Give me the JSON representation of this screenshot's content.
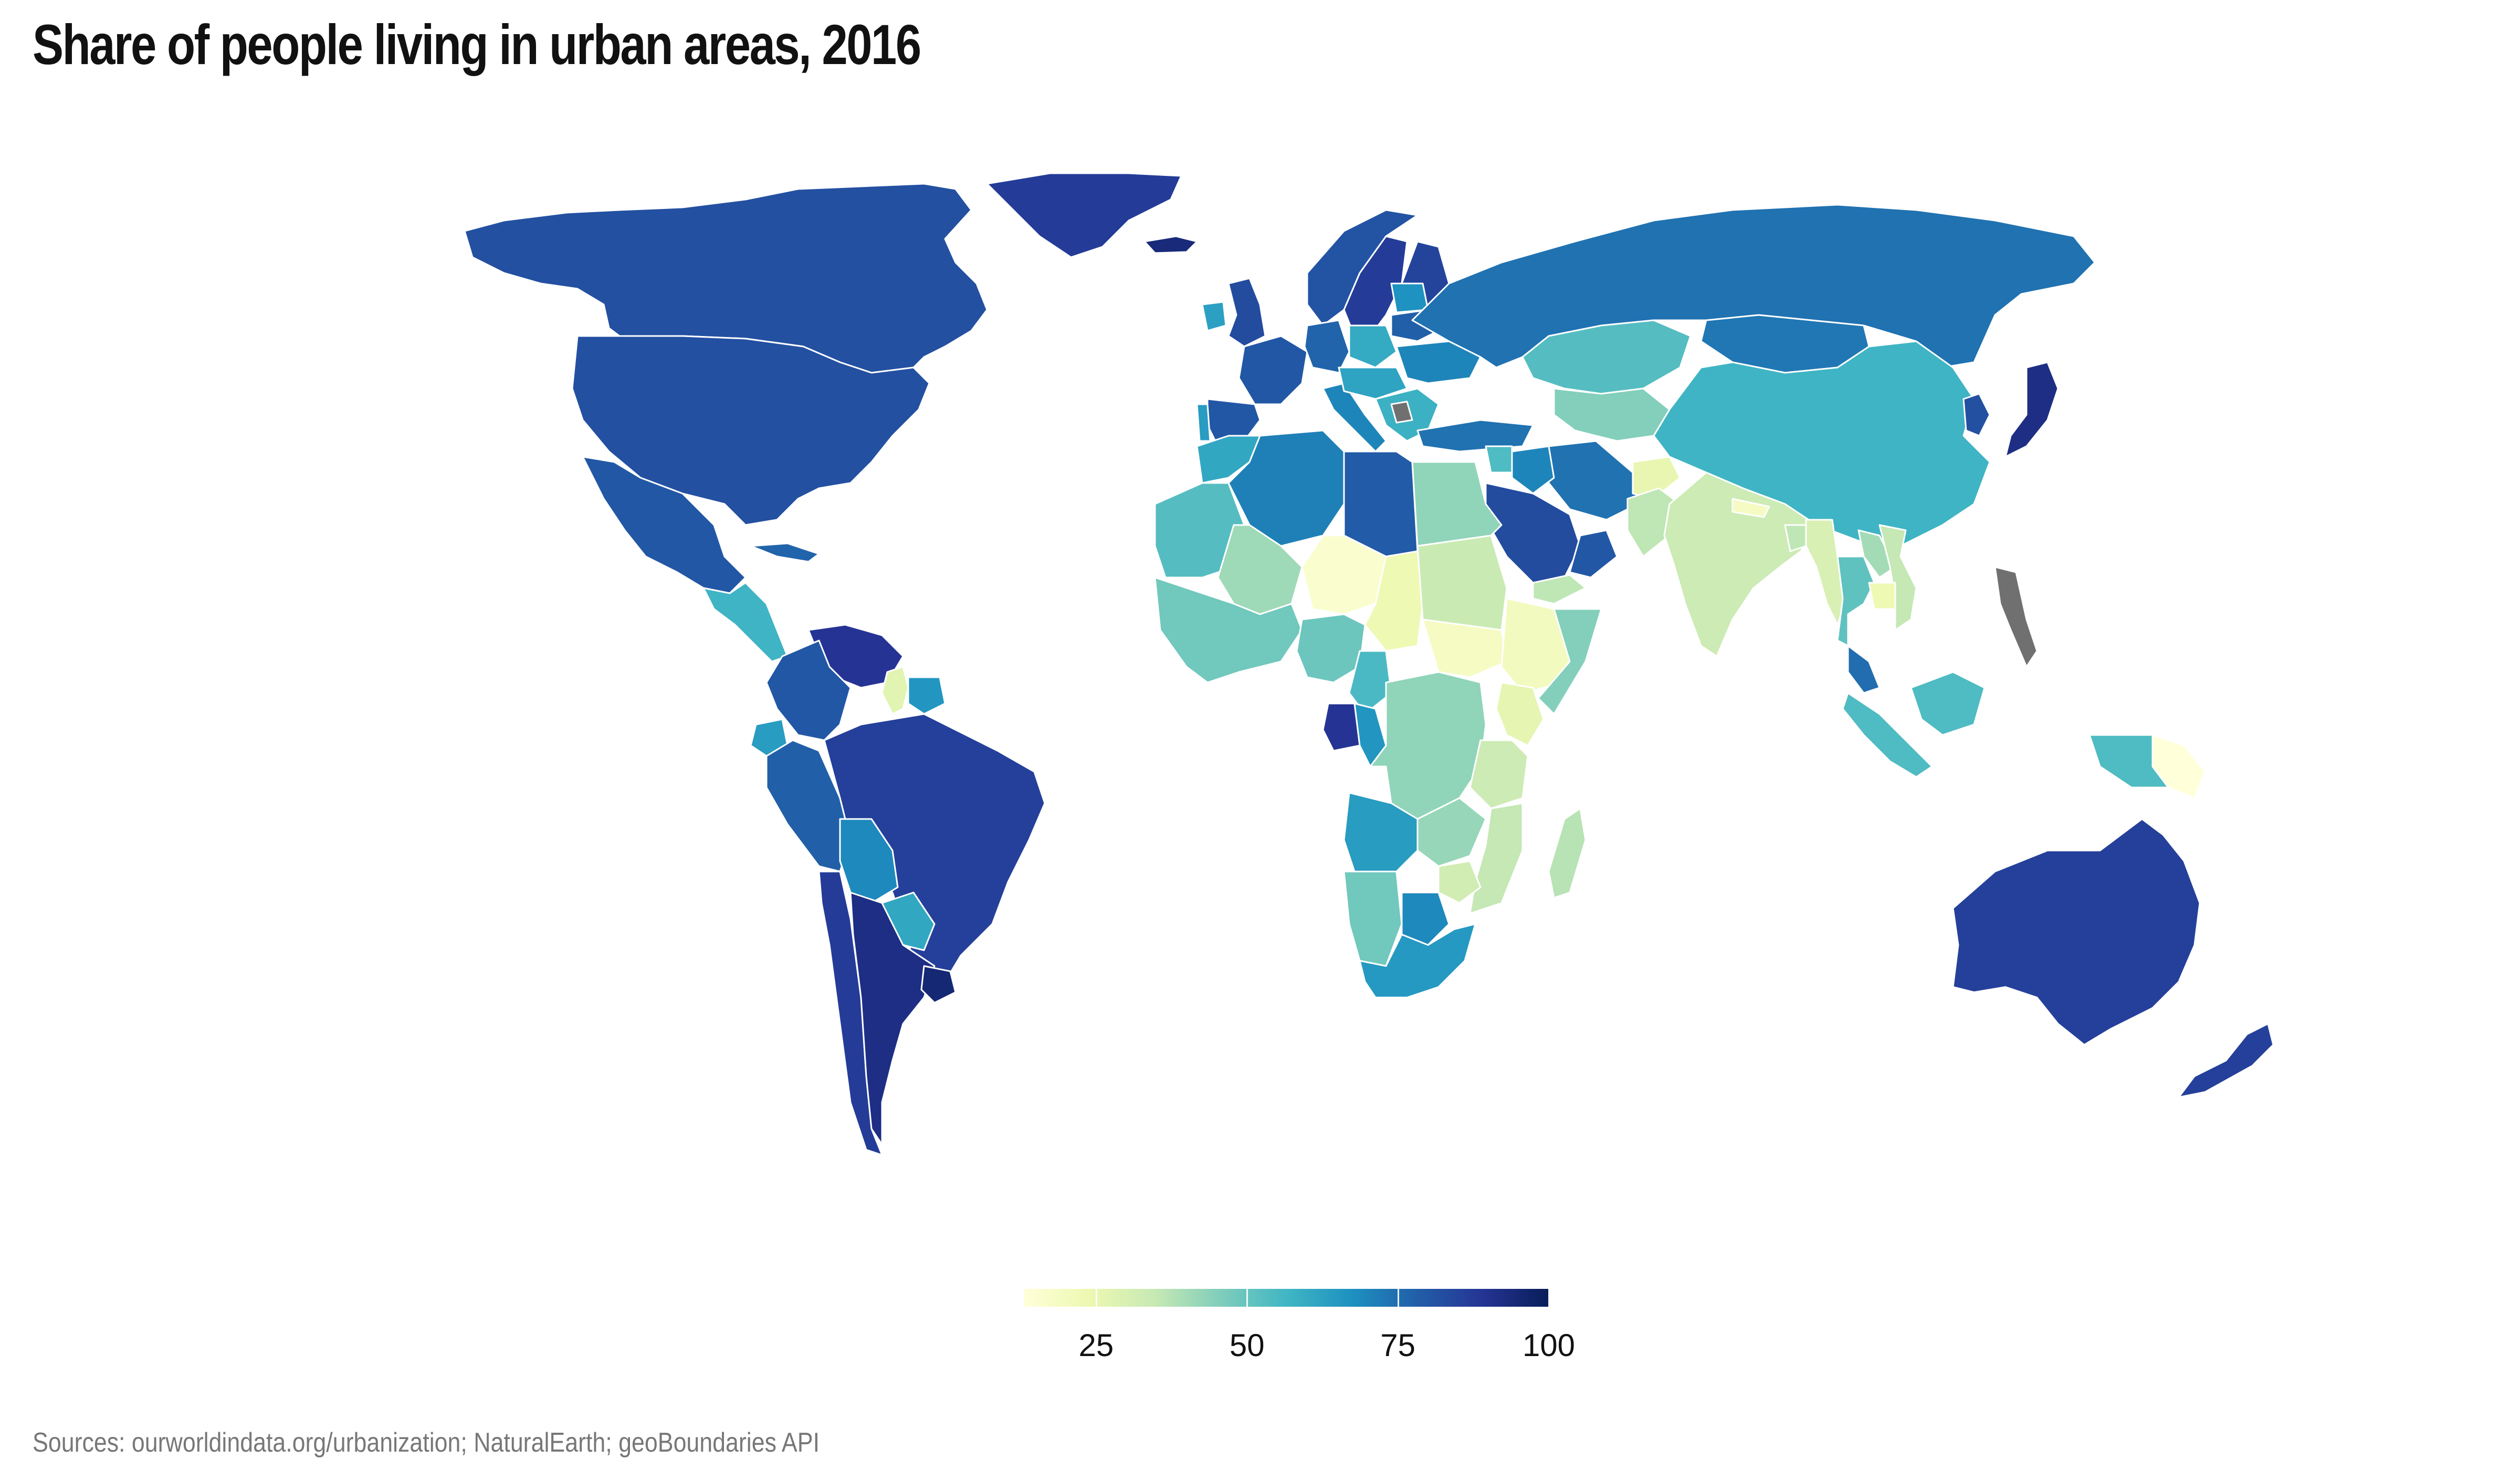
{
  "title": "Share of people living in urban areas, 2016",
  "source": "Sources: ourworldindata.org/urbanization; NaturalEarth; geoBoundaries API",
  "legend": {
    "ticks": [
      {
        "label": "25",
        "value": 25
      },
      {
        "label": "50",
        "value": 50
      },
      {
        "label": "75",
        "value": 75
      },
      {
        "label": "100",
        "value": 100
      }
    ],
    "min": 13,
    "max": 100,
    "colors": [
      "#ffffd9",
      "#edf8b1",
      "#c7e9b4",
      "#7fcdbb",
      "#41b6c4",
      "#1d91c0",
      "#225ea8",
      "#253494",
      "#081d58"
    ],
    "no_data_color": "#707070",
    "border_color": "#ffffff"
  },
  "regions": [
    {
      "name": "Canada",
      "value": 82
    },
    {
      "name": "United States",
      "value": 82
    },
    {
      "name": "Greenland",
      "value": 87
    },
    {
      "name": "Mexico",
      "value": 80
    },
    {
      "name": "Central America",
      "value": 57
    },
    {
      "name": "Cuba",
      "value": 77
    },
    {
      "name": "Venezuela",
      "value": 89
    },
    {
      "name": "Colombia",
      "value": 80
    },
    {
      "name": "Guyana",
      "value": 27
    },
    {
      "name": "Suriname",
      "value": 66
    },
    {
      "name": "Ecuador",
      "value": 64
    },
    {
      "name": "Peru",
      "value": 78
    },
    {
      "name": "Brazil",
      "value": 86
    },
    {
      "name": "Bolivia",
      "value": 69
    },
    {
      "name": "Paraguay",
      "value": 61
    },
    {
      "name": "Chile",
      "value": 87
    },
    {
      "name": "Argentina",
      "value": 92
    },
    {
      "name": "Uruguay",
      "value": 95
    },
    {
      "name": "Iceland",
      "value": 94
    },
    {
      "name": "Norway",
      "value": 81
    },
    {
      "name": "Sweden",
      "value": 87
    },
    {
      "name": "Finland",
      "value": 85
    },
    {
      "name": "United Kingdom",
      "value": 83
    },
    {
      "name": "Ireland",
      "value": 63
    },
    {
      "name": "France",
      "value": 80
    },
    {
      "name": "Spain",
      "value": 80
    },
    {
      "name": "Portugal",
      "value": 64
    },
    {
      "name": "Germany",
      "value": 77
    },
    {
      "name": "Poland",
      "value": 60
    },
    {
      "name": "Italy",
      "value": 70
    },
    {
      "name": "Central Europe",
      "value": 62
    },
    {
      "name": "Balkans",
      "value": 58
    },
    {
      "name": "Ukraine",
      "value": 70
    },
    {
      "name": "Belarus",
      "value": 78
    },
    {
      "name": "Baltics",
      "value": 67
    },
    {
      "name": "Turkey",
      "value": 74
    },
    {
      "name": "Russia",
      "value": 74
    },
    {
      "name": "Kazakhstan",
      "value": 53
    },
    {
      "name": "Central Asia",
      "value": 45
    },
    {
      "name": "Mongolia",
      "value": 73
    },
    {
      "name": "China",
      "value": 57
    },
    {
      "name": "Korea",
      "value": 82
    },
    {
      "name": "Japan",
      "value": 92
    },
    {
      "name": "Iran",
      "value": 74
    },
    {
      "name": "Iraq",
      "value": 70
    },
    {
      "name": "Syria",
      "value": 54
    },
    {
      "name": "Saudi Arabia",
      "value": 83
    },
    {
      "name": "Oman",
      "value": 80
    },
    {
      "name": "Yemen",
      "value": 36
    },
    {
      "name": "Afghanistan",
      "value": 25
    },
    {
      "name": "Pakistan",
      "value": 36
    },
    {
      "name": "India",
      "value": 33
    },
    {
      "name": "Nepal",
      "value": 19
    },
    {
      "name": "Bangladesh",
      "value": 36
    },
    {
      "name": "Myanmar",
      "value": 30
    },
    {
      "name": "Thailand",
      "value": 51
    },
    {
      "name": "Laos",
      "value": 40
    },
    {
      "name": "Vietnam",
      "value": 35
    },
    {
      "name": "Cambodia",
      "value": 23
    },
    {
      "name": "Malaysia",
      "value": 75
    },
    {
      "name": "Indonesia",
      "value": 54
    },
    {
      "name": "Borneo",
      "value": 54
    },
    {
      "name": "Papua New Guinea",
      "value": 13
    },
    {
      "name": "New Guinea (Indonesia)",
      "value": 54
    },
    {
      "name": "Australia",
      "value": 86
    },
    {
      "name": "New Zealand",
      "value": 86
    },
    {
      "name": "Morocco",
      "value": 61
    },
    {
      "name": "Algeria",
      "value": 71
    },
    {
      "name": "Libya",
      "value": 79
    },
    {
      "name": "Egypt",
      "value": 43
    },
    {
      "name": "Western Sahara / Mauritania",
      "value": 53
    },
    {
      "name": "Mali",
      "value": 41
    },
    {
      "name": "Niger",
      "value": 16
    },
    {
      "name": "Chad",
      "value": 23
    },
    {
      "name": "Sudan",
      "value": 34
    },
    {
      "name": "South Sudan",
      "value": 19
    },
    {
      "name": "Ethiopia",
      "value": 20
    },
    {
      "name": "Somalia",
      "value": 45
    },
    {
      "name": "West Africa",
      "value": 48
    },
    {
      "name": "Nigeria",
      "value": 49
    },
    {
      "name": "Cameroon",
      "value": 55
    },
    {
      "name": "Gabon",
      "value": 89
    },
    {
      "name": "Congo",
      "value": 66
    },
    {
      "name": "DR Congo",
      "value": 43
    },
    {
      "name": "Kenya",
      "value": 26
    },
    {
      "name": "Tanzania",
      "value": 33
    },
    {
      "name": "Angola",
      "value": 64
    },
    {
      "name": "Zambia",
      "value": 42
    },
    {
      "name": "Mozambique",
      "value": 35
    },
    {
      "name": "Namibia",
      "value": 48
    },
    {
      "name": "Botswana",
      "value": 69
    },
    {
      "name": "Zimbabwe",
      "value": 32
    },
    {
      "name": "South Africa",
      "value": 65
    },
    {
      "name": "Madagascar",
      "value": 37
    },
    {
      "name": "Philippines",
      "value": null
    },
    {
      "name": "Serbia / Kosovo",
      "value": null
    }
  ]
}
